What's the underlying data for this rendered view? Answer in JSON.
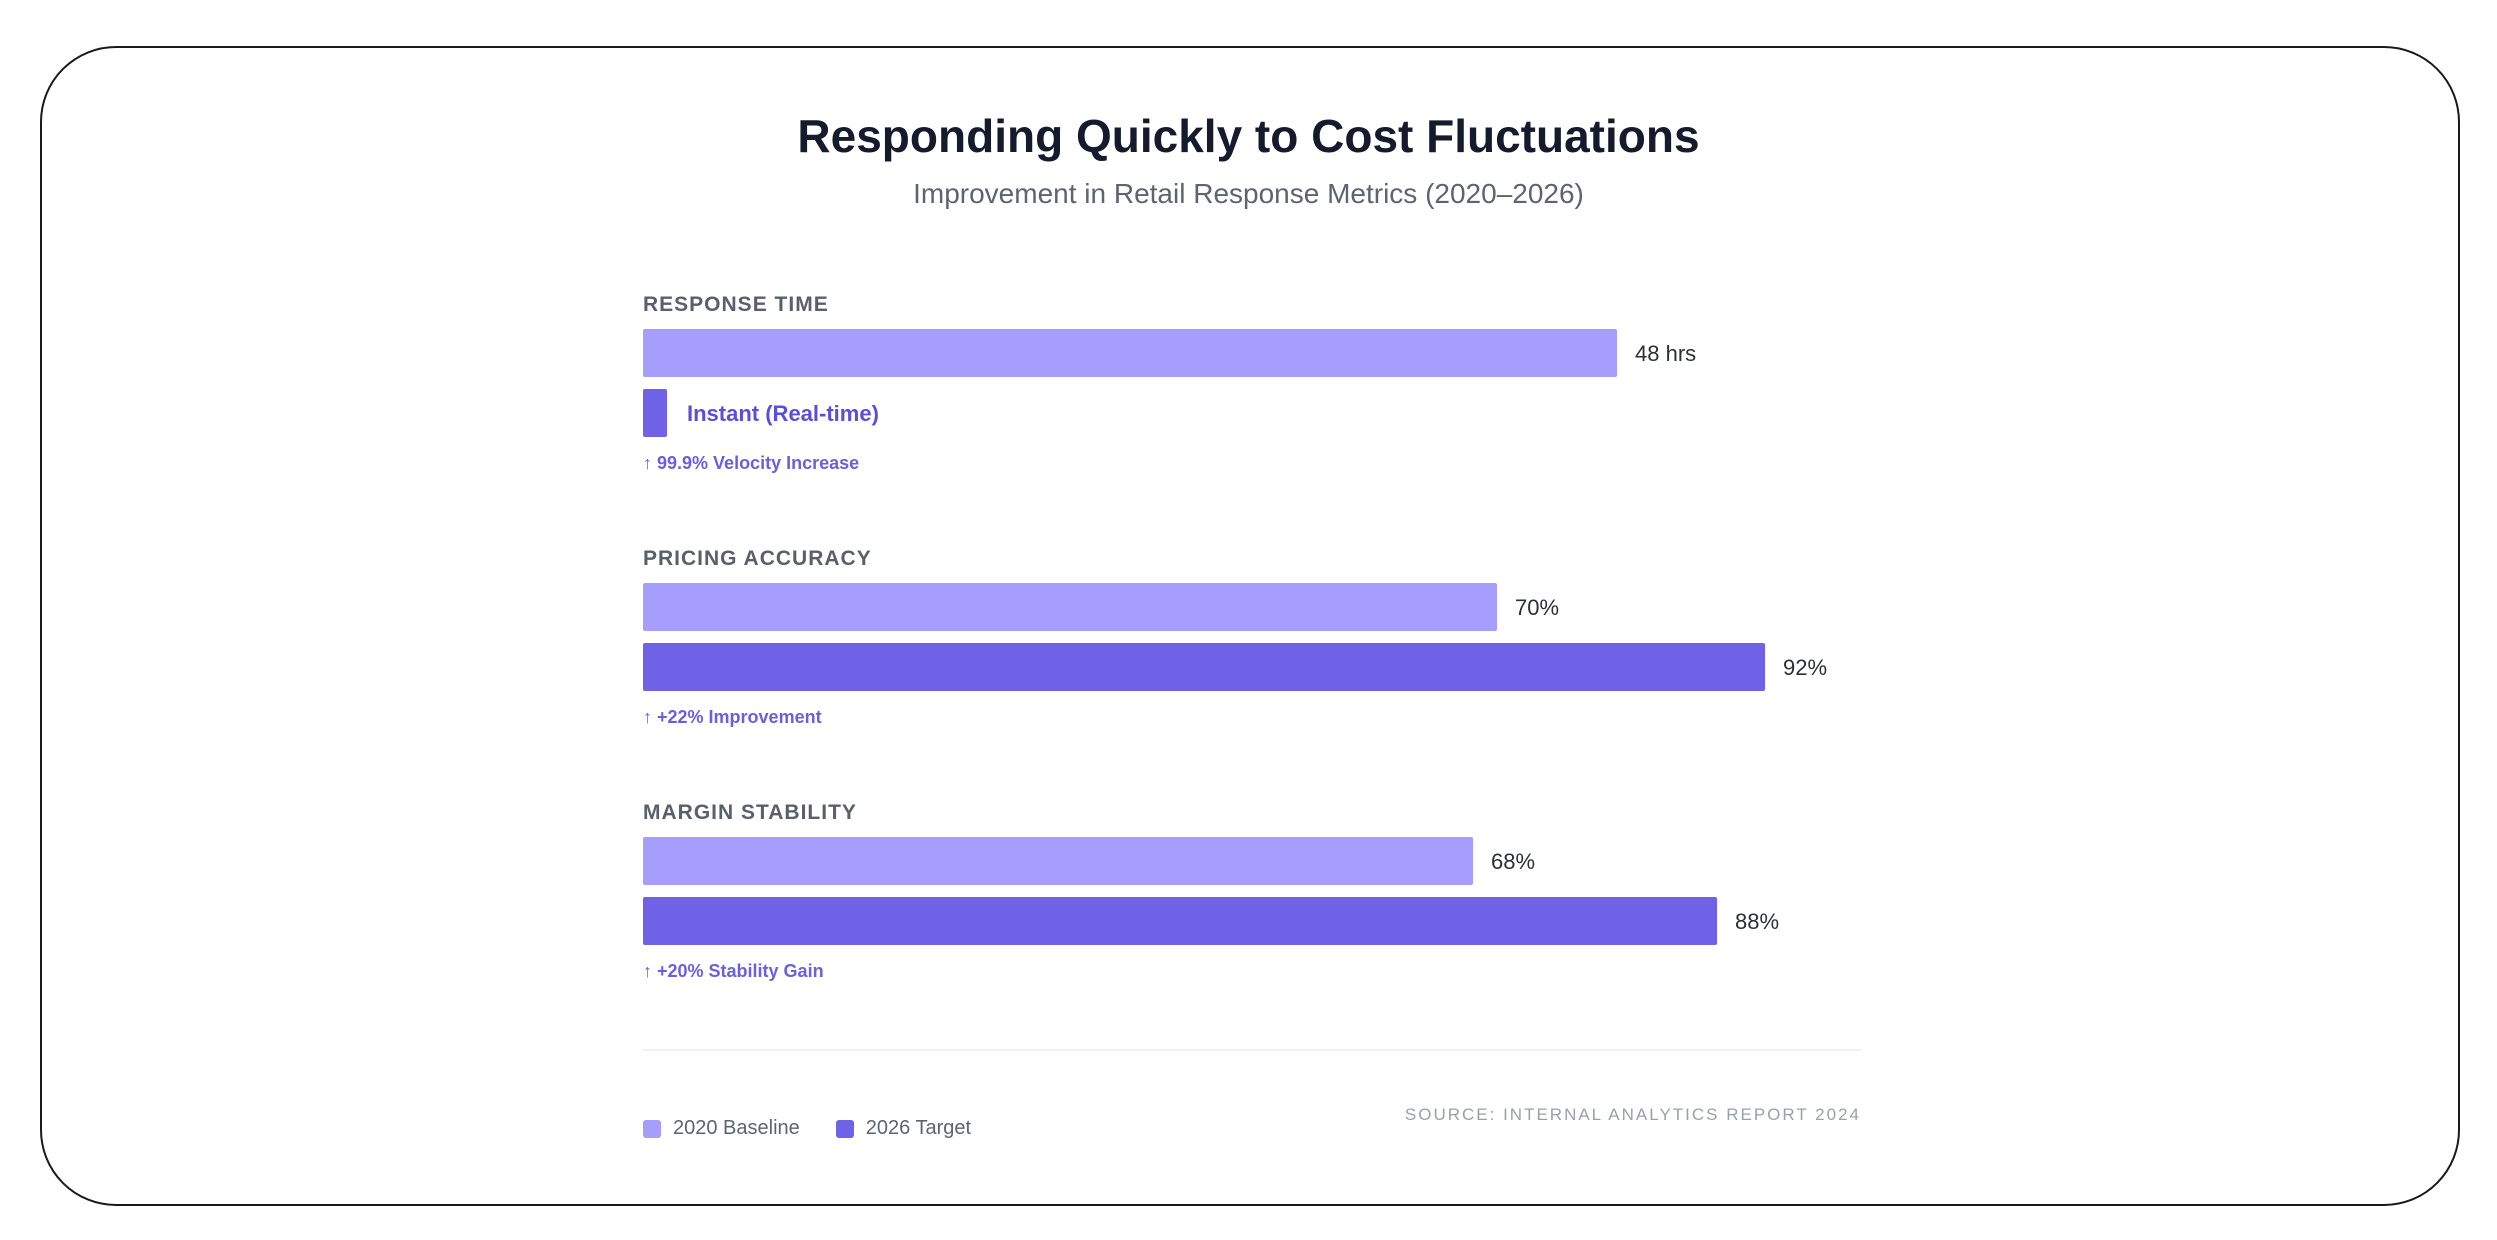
{
  "colors": {
    "baseline": "#a69dfc",
    "target": "#6f62e7"
  },
  "chart_data": {
    "type": "bar",
    "orientation": "horizontal",
    "title": "Responding Quickly to Cost Fluctuations",
    "subtitle": "Improvement in Retail Response Metrics (2020–2026)",
    "series": [
      {
        "name": "2020 Baseline"
      },
      {
        "name": "2026 Target"
      }
    ],
    "groups": [
      {
        "category": "RESPONSE TIME",
        "baseline": {
          "value": 48,
          "label": "48 hrs"
        },
        "target": {
          "value": 0.9,
          "label": "Instant (Real-time)"
        },
        "change": "↑ 99.9% Velocity Increase"
      },
      {
        "category": "PRICING ACCURACY",
        "baseline": {
          "value": 70,
          "label": "70%"
        },
        "target": {
          "value": 92,
          "label": "92%"
        },
        "change": "↑ +22% Improvement"
      },
      {
        "category": "MARGIN STABILITY",
        "baseline": {
          "value": 68,
          "label": "68%"
        },
        "target": {
          "value": 88,
          "label": "88%"
        },
        "change": "↑ +20% Stability Gain"
      }
    ],
    "xlim": [
      0,
      100
    ],
    "grid": false,
    "legend_position": "bottom-left"
  },
  "legend": {
    "baseline_label": "2020 Baseline",
    "target_label": "2026 Target"
  },
  "source": "SOURCE: INTERNAL ANALYTICS REPORT 2024"
}
